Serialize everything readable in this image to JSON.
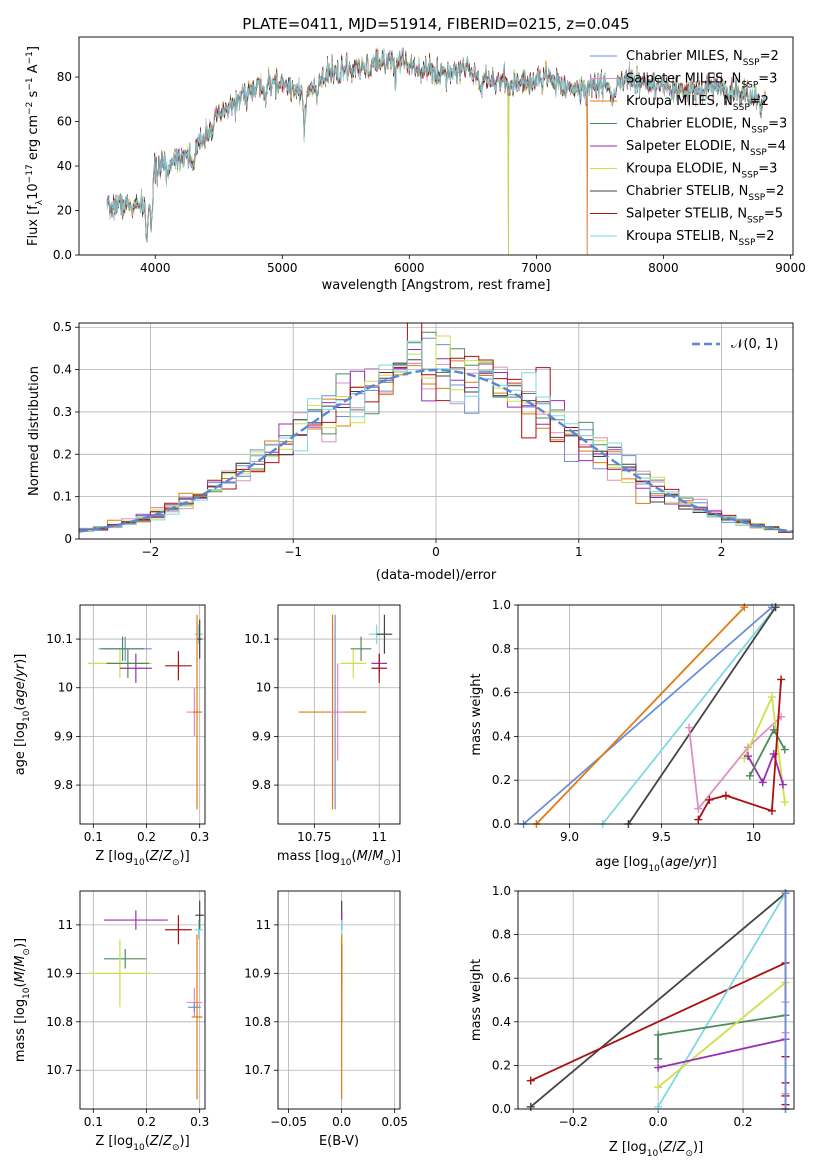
{
  "figure_title": "PLATE=0411, MJD=51914, FIBERID=0215, z=0.045",
  "colors": {
    "chabrier_miles": "#6b8fd8",
    "salpeter_miles": "#e08ec4",
    "kroupa_miles": "#e07b10",
    "chabrier_elodie": "#4f8a5c",
    "salpeter_elodie": "#9a2fb5",
    "kroupa_elodie": "#cde04a",
    "chabrier_stelib": "#444444",
    "salpeter_stelib": "#aa1111",
    "kroupa_stelib": "#80d8e0",
    "normal_curve": "#5b86d6",
    "grid": "#b0b0b0"
  },
  "chart_data": [
    {
      "type": "line",
      "id": "spectrum",
      "xlabel": "wavelength [Angstrom, rest frame]",
      "ylabel": "Flux [f_λ 10^-17 erg cm^-2 s^-1 A^-1]",
      "xlim": [
        3400,
        9020
      ],
      "ylim": [
        0,
        98
      ],
      "xticks": [
        4000,
        5000,
        6000,
        7000,
        8000,
        9000
      ],
      "yticks": [
        0,
        20,
        40,
        60,
        80
      ],
      "grid": false,
      "legend_position": "top-right",
      "legend": [
        {
          "base": "Chabrier MILES, N",
          "sub": "SSP",
          "tail": "=2",
          "color": "chabrier_miles"
        },
        {
          "base": "Salpeter MILES, N",
          "sub": "SSP",
          "tail": "=3",
          "color": "salpeter_miles"
        },
        {
          "base": "Kroupa MILES, N",
          "sub": "SSP",
          "tail": "=2",
          "color": "kroupa_miles"
        },
        {
          "base": "Chabrier ELODIE, N",
          "sub": "SSP",
          "tail": "=3",
          "color": "chabrier_elodie"
        },
        {
          "base": "Salpeter ELODIE, N",
          "sub": "SSP",
          "tail": "=4",
          "color": "salpeter_elodie"
        },
        {
          "base": "Kroupa ELODIE, N",
          "sub": "SSP",
          "tail": "=3",
          "color": "kroupa_elodie"
        },
        {
          "base": "Chabrier STELIB, N",
          "sub": "SSP",
          "tail": "=2",
          "color": "chabrier_stelib"
        },
        {
          "base": "Salpeter STELIB, N",
          "sub": "SSP",
          "tail": "=5",
          "color": "salpeter_stelib"
        },
        {
          "base": "Kroupa STELIB, N",
          "sub": "SSP",
          "tail": "=2",
          "color": "kroupa_stelib"
        }
      ],
      "continuum_nodes": [
        [
          3620,
          20
        ],
        [
          3700,
          23
        ],
        [
          3800,
          22
        ],
        [
          3900,
          22
        ],
        [
          3960,
          32
        ],
        [
          4000,
          38
        ],
        [
          4100,
          42
        ],
        [
          4200,
          45
        ],
        [
          4300,
          45
        ],
        [
          4400,
          55
        ],
        [
          4500,
          62
        ],
        [
          4600,
          67
        ],
        [
          4700,
          72
        ],
        [
          4800,
          75
        ],
        [
          4900,
          76
        ],
        [
          5000,
          77
        ],
        [
          5100,
          75
        ],
        [
          5200,
          73
        ],
        [
          5300,
          78
        ],
        [
          5400,
          82
        ],
        [
          5500,
          83
        ],
        [
          5600,
          83
        ],
        [
          5700,
          85
        ],
        [
          5800,
          87
        ],
        [
          5900,
          89
        ],
        [
          6000,
          86
        ],
        [
          6100,
          84
        ],
        [
          6200,
          82
        ],
        [
          6300,
          82
        ],
        [
          6400,
          84
        ],
        [
          6500,
          83
        ],
        [
          6600,
          80
        ],
        [
          6700,
          78
        ],
        [
          6800,
          77
        ],
        [
          6900,
          77
        ],
        [
          7000,
          79
        ],
        [
          7100,
          80
        ],
        [
          7200,
          77
        ],
        [
          7300,
          74
        ],
        [
          7400,
          75
        ],
        [
          7500,
          77
        ],
        [
          7600,
          74
        ],
        [
          7700,
          79
        ],
        [
          7800,
          78
        ],
        [
          7900,
          76
        ],
        [
          8000,
          75
        ],
        [
          8100,
          74
        ],
        [
          8200,
          73
        ],
        [
          8300,
          74
        ],
        [
          8400,
          76
        ],
        [
          8500,
          74
        ],
        [
          8600,
          73
        ],
        [
          8700,
          70
        ],
        [
          8800,
          68
        ]
      ],
      "absorption_features": [
        [
          3934,
          22
        ],
        [
          3969,
          20
        ],
        [
          4102,
          6
        ],
        [
          4300,
          8
        ],
        [
          4861,
          5
        ],
        [
          5175,
          18
        ],
        [
          5270,
          6
        ],
        [
          5890,
          10
        ],
        [
          6563,
          6
        ],
        [
          7600,
          5
        ]
      ],
      "gaps": [
        {
          "series": "kroupa_elodie",
          "x": 6780
        },
        {
          "series": "chabrier_elodie",
          "x": 6780
        },
        {
          "series": "kroupa_miles",
          "x": 7400
        },
        {
          "series": "salpeter_miles",
          "x": 7400
        }
      ]
    },
    {
      "type": "histogram",
      "id": "residuals",
      "xlabel": "(data-model)/error",
      "ylabel": "Normed distribution",
      "xlim": [
        -2.5,
        2.5
      ],
      "ylim": [
        0,
        0.51
      ],
      "xticks": [
        -2,
        -1,
        0,
        1,
        2
      ],
      "yticks": [
        0.0,
        0.1,
        0.2,
        0.3,
        0.4,
        0.5
      ],
      "grid": true,
      "bin_width": 0.1,
      "legend_position": "top-right",
      "legend": [
        {
          "label": "𝒩(0, 1)",
          "color": "normal_curve",
          "style": "dashed"
        }
      ],
      "reference_curve": "standard normal density"
    },
    {
      "type": "errorbar",
      "id": "age_vs_z",
      "xlabel": "Z [log10(Z/Z☉)]",
      "ylabel": "age [log10(age/yr)]",
      "xlim": [
        0.075,
        0.31
      ],
      "ylim": [
        9.72,
        10.17
      ],
      "xticks": [
        0.1,
        0.2,
        0.3
      ],
      "yticks": [
        9.8,
        9.9,
        10.0,
        10.1
      ],
      "grid": true,
      "points": [
        {
          "series": "kroupa_elodie",
          "x": 0.15,
          "y": 10.05,
          "xerr": 0.06,
          "yerr": 0.03
        },
        {
          "series": "chabrier_elodie",
          "x": 0.165,
          "y": 10.05,
          "xerr": 0.04,
          "yerr": 0.03
        },
        {
          "series": "salpeter_elodie",
          "x": 0.18,
          "y": 10.04,
          "xerr": 0.03,
          "yerr": 0.03
        },
        {
          "series": "chabrier_miles",
          "x": 0.16,
          "y": 10.08,
          "xerr": 0.05,
          "yerr": 0.025
        },
        {
          "series": "chabrier_elodie",
          "x": 0.155,
          "y": 10.08,
          "xerr": 0.04,
          "yerr": 0.025
        },
        {
          "series": "salpeter_stelib",
          "x": 0.26,
          "y": 10.045,
          "xerr": 0.025,
          "yerr": 0.03
        },
        {
          "series": "kroupa_stelib",
          "x": 0.298,
          "y": 10.11,
          "xerr": 0.008,
          "yerr": 0.02
        },
        {
          "series": "chabrier_stelib",
          "x": 0.3,
          "y": 10.1,
          "xerr": 0.005,
          "yerr": 0.04
        },
        {
          "series": "salpeter_miles",
          "x": 0.29,
          "y": 9.95,
          "xerr": 0.015,
          "yerr": 0.05
        },
        {
          "series": "kroupa_miles",
          "x": 0.295,
          "y": 9.95,
          "xerr": 0.008,
          "yerr": 0.2
        }
      ]
    },
    {
      "type": "errorbar",
      "id": "age_vs_mass",
      "xlabel": "mass [log10(M/M☉)]",
      "ylabel": "",
      "xlim": [
        10.61,
        11.08
      ],
      "ylim": [
        9.72,
        10.17
      ],
      "xticks": [
        10.75,
        11.0
      ],
      "yticks": [
        9.8,
        9.9,
        10.0,
        10.1
      ],
      "grid": true,
      "points": [
        {
          "series": "kroupa_miles",
          "x": 10.82,
          "y": 9.95,
          "xerr": 0.13,
          "yerr": 0.2
        },
        {
          "series": "chabrier_miles",
          "x": 10.83,
          "y": 9.95,
          "xerr": 0.01,
          "yerr": 0.2
        },
        {
          "series": "salpeter_miles",
          "x": 10.84,
          "y": 9.95,
          "xerr": 0.03,
          "yerr": 0.1
        },
        {
          "series": "kroupa_elodie",
          "x": 10.9,
          "y": 10.05,
          "xerr": 0.05,
          "yerr": 0.03
        },
        {
          "series": "chabrier_elodie",
          "x": 10.93,
          "y": 10.08,
          "xerr": 0.04,
          "yerr": 0.025
        },
        {
          "series": "salpeter_elodie",
          "x": 11.0,
          "y": 10.05,
          "xerr": 0.03,
          "yerr": 0.02
        },
        {
          "series": "salpeter_stelib",
          "x": 11.0,
          "y": 10.04,
          "xerr": 0.03,
          "yerr": 0.03
        },
        {
          "series": "kroupa_stelib",
          "x": 10.99,
          "y": 10.11,
          "xerr": 0.03,
          "yerr": 0.02
        },
        {
          "series": "chabrier_stelib",
          "x": 11.02,
          "y": 10.11,
          "xerr": 0.03,
          "yerr": 0.04
        }
      ]
    },
    {
      "type": "line",
      "id": "massweight_vs_age",
      "xlabel": "age [log10(age/yr)]",
      "ylabel": "mass weight",
      "xlim": [
        8.72,
        10.22
      ],
      "ylim": [
        0,
        1.0
      ],
      "xticks": [
        9.0,
        9.5,
        10.0
      ],
      "yticks": [
        0.0,
        0.2,
        0.4,
        0.6,
        0.8,
        1.0
      ],
      "grid": true,
      "series": [
        {
          "series": "chabrier_miles",
          "x": [
            8.75,
            10.1
          ],
          "y": [
            0.0,
            0.99
          ]
        },
        {
          "series": "kroupa_miles",
          "x": [
            8.82,
            9.95
          ],
          "y": [
            0.0,
            0.99
          ]
        },
        {
          "series": "kroupa_stelib",
          "x": [
            9.18,
            10.12
          ],
          "y": [
            0.0,
            0.99
          ]
        },
        {
          "series": "chabrier_stelib",
          "x": [
            9.32,
            10.12
          ],
          "y": [
            0.0,
            0.99
          ]
        },
        {
          "series": "salpeter_miles",
          "x": [
            9.65,
            9.7,
            9.97,
            10.15
          ],
          "y": [
            0.44,
            0.07,
            0.35,
            0.49
          ]
        },
        {
          "series": "kroupa_elodie",
          "x": [
            9.95,
            10.1,
            10.17
          ],
          "y": [
            0.3,
            0.58,
            0.1
          ]
        },
        {
          "series": "salpeter_elodie",
          "x": [
            9.97,
            10.05,
            10.11,
            10.16
          ],
          "y": [
            0.31,
            0.19,
            0.32,
            0.18
          ]
        },
        {
          "series": "chabrier_elodie",
          "x": [
            9.98,
            10.11,
            10.17
          ],
          "y": [
            0.22,
            0.43,
            0.34
          ]
        },
        {
          "series": "salpeter_stelib",
          "x": [
            9.7,
            9.76,
            9.85,
            10.1,
            10.15
          ],
          "y": [
            0.02,
            0.11,
            0.13,
            0.06,
            0.66
          ]
        }
      ]
    },
    {
      "type": "errorbar",
      "id": "mass_vs_z",
      "xlabel": "Z [log10(Z/Z☉)]",
      "ylabel": "mass [log10(M/M☉)]",
      "xlim": [
        0.075,
        0.31
      ],
      "ylim": [
        10.62,
        11.07
      ],
      "xticks": [
        0.1,
        0.2,
        0.3
      ],
      "yticks": [
        10.7,
        10.8,
        10.9,
        11.0
      ],
      "grid": true,
      "points": [
        {
          "series": "salpeter_elodie",
          "x": 0.18,
          "y": 11.01,
          "xerr": 0.06,
          "yerr": 0.02
        },
        {
          "series": "chabrier_elodie",
          "x": 0.16,
          "y": 10.93,
          "xerr": 0.04,
          "yerr": 0.02
        },
        {
          "series": "kroupa_elodie",
          "x": 0.15,
          "y": 10.9,
          "xerr": 0.06,
          "yerr": 0.07
        },
        {
          "series": "salpeter_stelib",
          "x": 0.26,
          "y": 10.99,
          "xerr": 0.025,
          "yerr": 0.03
        },
        {
          "series": "chabrier_stelib",
          "x": 0.3,
          "y": 11.02,
          "xerr": 0.008,
          "yerr": 0.03
        },
        {
          "series": "kroupa_stelib",
          "x": 0.298,
          "y": 10.99,
          "xerr": 0.008,
          "yerr": 0.02
        },
        {
          "series": "salpeter_miles",
          "x": 0.29,
          "y": 10.84,
          "xerr": 0.015,
          "yerr": 0.03
        },
        {
          "series": "chabrier_miles",
          "x": 0.29,
          "y": 10.83,
          "xerr": 0.012,
          "yerr": 0.01
        },
        {
          "series": "kroupa_miles",
          "x": 0.295,
          "y": 10.81,
          "xerr": 0.01,
          "yerr": 0.17
        }
      ]
    },
    {
      "type": "errorbar",
      "id": "mass_vs_ebv",
      "xlabel": "E(B-V)",
      "ylabel": "",
      "xlim": [
        -0.06,
        0.055
      ],
      "ylim": [
        10.62,
        11.07
      ],
      "xticks": [
        -0.05,
        0.0,
        0.05
      ],
      "yticks": [
        10.7,
        10.8,
        10.9,
        11.0
      ],
      "grid": true,
      "points": [
        {
          "series": "chabrier_stelib",
          "x": 0.0,
          "y": 11.02,
          "xerr": 0.0006,
          "yerr": 0.03
        },
        {
          "series": "salpeter_elodie",
          "x": 0.0,
          "y": 11.01,
          "xerr": 0.0006,
          "yerr": 0.02
        },
        {
          "series": "kroupa_stelib",
          "x": 0.0,
          "y": 10.99,
          "xerr": 0.0006,
          "yerr": 0.02
        },
        {
          "series": "chabrier_elodie",
          "x": 0.0,
          "y": 10.93,
          "xerr": 0.0006,
          "yerr": 0.02
        },
        {
          "series": "kroupa_elodie",
          "x": 0.0,
          "y": 10.9,
          "xerr": 0.0006,
          "yerr": 0.07
        },
        {
          "series": "salpeter_stelib",
          "x": 0.0,
          "y": 10.88,
          "xerr": 0.0006,
          "yerr": 0.08
        },
        {
          "series": "chabrier_miles",
          "x": 0.0,
          "y": 10.83,
          "xerr": 0.0006,
          "yerr": 0.01
        },
        {
          "series": "salpeter_miles",
          "x": 0.0,
          "y": 10.84,
          "xerr": 0.0006,
          "yerr": 0.03
        },
        {
          "series": "kroupa_miles",
          "x": 0.0,
          "y": 10.81,
          "xerr": 0.0006,
          "yerr": 0.17
        }
      ]
    },
    {
      "type": "line",
      "id": "massweight_vs_z",
      "xlabel": "Z [log10(Z/Z☉)]",
      "ylabel": "mass weight",
      "xlim": [
        -0.33,
        0.32
      ],
      "ylim": [
        0,
        1.0
      ],
      "xticks": [
        -0.2,
        0.0,
        0.2
      ],
      "yticks": [
        0.0,
        0.2,
        0.4,
        0.6,
        0.8,
        1.0
      ],
      "grid": true,
      "series": [
        {
          "series": "chabrier_stelib",
          "x": [
            -0.3,
            0.3
          ],
          "y": [
            0.01,
            0.99
          ]
        },
        {
          "series": "salpeter_stelib",
          "x": [
            -0.3,
            0.3,
            0.3,
            0.3,
            0.3,
            0.3
          ],
          "y": [
            0.13,
            0.67,
            0.24,
            0.12,
            0.06,
            0.02
          ]
        },
        {
          "series": "kroupa_stelib",
          "x": [
            0.0,
            0.3
          ],
          "y": [
            0.01,
            0.99
          ]
        },
        {
          "series": "chabrier_elodie",
          "x": [
            0.0,
            0.0,
            0.3
          ],
          "y": [
            0.23,
            0.34,
            0.43
          ]
        },
        {
          "series": "kroupa_elodie",
          "x": [
            0.0,
            0.3
          ],
          "y": [
            0.1,
            0.58
          ]
        },
        {
          "series": "salpeter_elodie",
          "x": [
            0.0,
            0.3
          ],
          "y": [
            0.19,
            0.32
          ]
        },
        {
          "series": "kroupa_miles",
          "x": [
            0.3,
            0.3
          ],
          "y": [
            0.0,
            0.99
          ]
        },
        {
          "series": "salpeter_miles",
          "x": [
            0.3,
            0.3,
            0.3
          ],
          "y": [
            0.07,
            0.35,
            0.49
          ]
        },
        {
          "series": "chabrier_miles",
          "x": [
            0.3,
            0.3
          ],
          "y": [
            0.0,
            0.99
          ]
        }
      ]
    }
  ]
}
